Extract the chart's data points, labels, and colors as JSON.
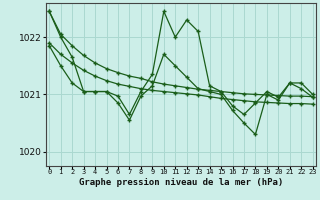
{
  "title": "Graphe pression niveau de la mer (hPa)",
  "background_color": "#cceee8",
  "grid_color": "#aad8d0",
  "line_color": "#1a5e1a",
  "ylim": [
    1019.75,
    1022.6
  ],
  "yticks": [
    1020,
    1021,
    1022
  ],
  "hours": [
    0,
    1,
    2,
    3,
    4,
    5,
    6,
    7,
    8,
    9,
    10,
    11,
    12,
    13,
    14,
    15,
    16,
    17,
    18,
    19,
    20,
    21,
    22,
    23
  ],
  "smooth1": [
    1022.45,
    1022.05,
    1021.85,
    1021.68,
    1021.55,
    1021.45,
    1021.38,
    1021.32,
    1021.28,
    1021.22,
    1021.18,
    1021.15,
    1021.12,
    1021.09,
    1021.07,
    1021.05,
    1021.03,
    1021.01,
    1021.0,
    1020.99,
    1020.98,
    1020.97,
    1020.97,
    1020.96
  ],
  "smooth2": [
    1021.9,
    1021.7,
    1021.55,
    1021.42,
    1021.32,
    1021.24,
    1021.18,
    1021.14,
    1021.1,
    1021.07,
    1021.05,
    1021.03,
    1021.01,
    1020.99,
    1020.96,
    1020.93,
    1020.91,
    1020.89,
    1020.87,
    1020.86,
    1020.85,
    1020.84,
    1020.84,
    1020.83
  ],
  "jagged1": [
    1022.45,
    1022.0,
    1021.65,
    1021.05,
    1021.05,
    1021.05,
    1020.97,
    1020.65,
    1021.05,
    1021.35,
    1022.45,
    1022.0,
    1022.3,
    1022.1,
    1021.15,
    1021.05,
    1020.8,
    1020.65,
    1020.85,
    1021.05,
    1020.95,
    1021.2,
    1021.2,
    1021.0
  ],
  "jagged2": [
    1021.85,
    1021.5,
    1021.2,
    1021.05,
    1021.05,
    1021.05,
    1020.85,
    1020.55,
    1020.97,
    1021.15,
    1021.7,
    1021.5,
    1021.3,
    1021.1,
    1021.05,
    1021.0,
    1020.72,
    1020.5,
    1020.3,
    1021.0,
    1020.9,
    1021.2,
    1021.1,
    1020.95
  ]
}
